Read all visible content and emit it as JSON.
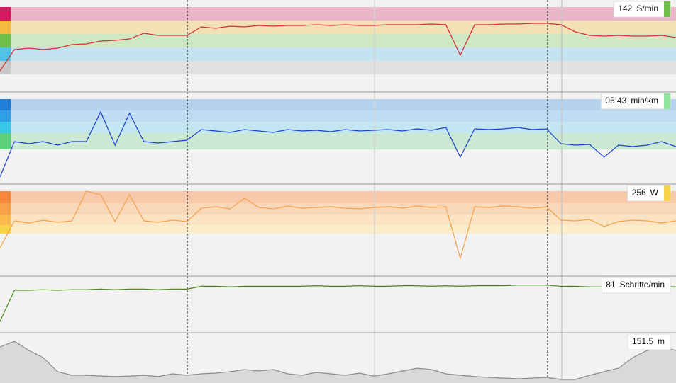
{
  "chart_data": [
    {
      "type": "line",
      "color": "#d62d3a",
      "ylim": [
        60,
        190
      ],
      "readout": {
        "value": "142",
        "unit": "S/min",
        "color": "#6cc04a"
      },
      "zones": [
        {
          "from": 161,
          "to": 180,
          "color": "#eab6ca",
          "marker": "#d81b60"
        },
        {
          "from": 142,
          "to": 161,
          "color": "#f4e0b5",
          "marker": "#f5b942"
        },
        {
          "from": 123,
          "to": 142,
          "color": "#cde8c2",
          "marker": "#6cc04a"
        },
        {
          "from": 104,
          "to": 123,
          "color": "#c3e3f0",
          "marker": "#4fc3e8"
        },
        {
          "from": 85,
          "to": 104,
          "color": "#e0e0e0",
          "marker": "#c8c8c8"
        }
      ],
      "values": [
        90,
        120,
        122,
        120,
        122,
        127,
        128,
        132,
        133,
        135,
        143,
        140,
        140,
        140,
        152,
        150,
        153,
        152,
        154,
        153,
        154,
        154,
        155,
        154,
        155,
        154,
        154,
        155,
        155,
        155,
        156,
        155,
        112,
        155,
        155,
        156,
        156,
        157,
        157,
        155,
        145,
        140,
        139,
        140,
        139,
        139,
        140,
        137
      ]
    },
    {
      "type": "line",
      "color": "#1a3fcf",
      "ylim": [
        9.5,
        3
      ],
      "readout": {
        "value": "05:43",
        "unit": "min/km",
        "color": "#8fe39a"
      },
      "zones": [
        {
          "from": 3.5,
          "to": 4.3,
          "color": "#b5d3ee",
          "marker": "#1e7fd8"
        },
        {
          "from": 4.3,
          "to": 5.1,
          "color": "#bfdcf2",
          "marker": "#2fa0e6"
        },
        {
          "from": 5.1,
          "to": 5.9,
          "color": "#c4e6f3",
          "marker": "#36c8e6"
        },
        {
          "from": 5.9,
          "to": 7.05,
          "color": "#cbe8d3",
          "marker": "#5ccf7a"
        }
      ],
      "values": [
        9.0,
        6.5,
        6.65,
        6.5,
        6.75,
        6.5,
        6.5,
        4.4,
        6.75,
        4.5,
        6.5,
        6.6,
        6.5,
        6.4,
        5.65,
        5.75,
        5.85,
        5.65,
        5.75,
        5.85,
        5.65,
        5.75,
        5.7,
        5.8,
        5.65,
        5.75,
        5.7,
        5.65,
        5.75,
        5.6,
        5.7,
        5.5,
        7.6,
        5.6,
        5.65,
        5.6,
        5.5,
        5.65,
        5.6,
        6.65,
        6.75,
        6.7,
        7.6,
        6.75,
        6.85,
        6.75,
        6.5,
        6.85
      ]
    },
    {
      "type": "line",
      "color": "#f5a04a",
      "ylim": [
        100,
        360
      ],
      "readout": {
        "value": "256",
        "unit": "W",
        "color": "#f9d44a"
      },
      "zones": [
        {
          "from": 306,
          "to": 340,
          "color": "#f7c9aa",
          "marker": "#f7873a"
        },
        {
          "from": 274,
          "to": 306,
          "color": "#f9d7b9",
          "marker": "#f9a24a"
        },
        {
          "from": 244,
          "to": 274,
          "color": "#fbe3c3",
          "marker": "#fbb94e"
        },
        {
          "from": 220,
          "to": 244,
          "color": "#fbedca",
          "marker": "#f9d44a"
        }
      ],
      "values": [
        180,
        256,
        250,
        258,
        252,
        256,
        340,
        330,
        254,
        330,
        256,
        252,
        258,
        254,
        292,
        296,
        290,
        320,
        294,
        290,
        298,
        292,
        294,
        296,
        292,
        290,
        294,
        296,
        292,
        298,
        294,
        296,
        150,
        296,
        294,
        298,
        296,
        292,
        296,
        258,
        256,
        260,
        240,
        254,
        258,
        256,
        250,
        256
      ]
    },
    {
      "type": "line",
      "color": "#4b8a1c",
      "ylim": [
        0,
        100
      ],
      "readout": {
        "value": "81",
        "unit": "Schritte/min"
      },
      "values": [
        20,
        75,
        75,
        76,
        75,
        76,
        76,
        77,
        76,
        77,
        77,
        76,
        77,
        77,
        82,
        82,
        81,
        82,
        82,
        82,
        82,
        82,
        83,
        82,
        82,
        83,
        82,
        82,
        83,
        83,
        82,
        83,
        82,
        83,
        83,
        83,
        84,
        84,
        84,
        82,
        82,
        81,
        81,
        82,
        81,
        81,
        82,
        81
      ]
    },
    {
      "type": "area",
      "color": "#8a8a8a",
      "fill": "#d9d9d9",
      "ylim": [
        120,
        160
      ],
      "readout": {
        "value": "151.5",
        "unit": "m"
      },
      "values": [
        148.7,
        153.2,
        145.9,
        140.3,
        129.0,
        126.2,
        126.2,
        125.6,
        125.1,
        125.6,
        126.2,
        125.1,
        127.3,
        126.2,
        127.3,
        127.9,
        129.0,
        130.7,
        129.6,
        130.7,
        127.3,
        126.2,
        128.5,
        127.3,
        126.2,
        127.9,
        125.6,
        127.3,
        129.6,
        131.8,
        130.7,
        127.3,
        126.2,
        125.1,
        124.5,
        123.9,
        123.4,
        123.9,
        124.5,
        122.8,
        122.8,
        126.2,
        129.0,
        131.8,
        140.3,
        145.9,
        148.7,
        145.9
      ]
    }
  ]
}
